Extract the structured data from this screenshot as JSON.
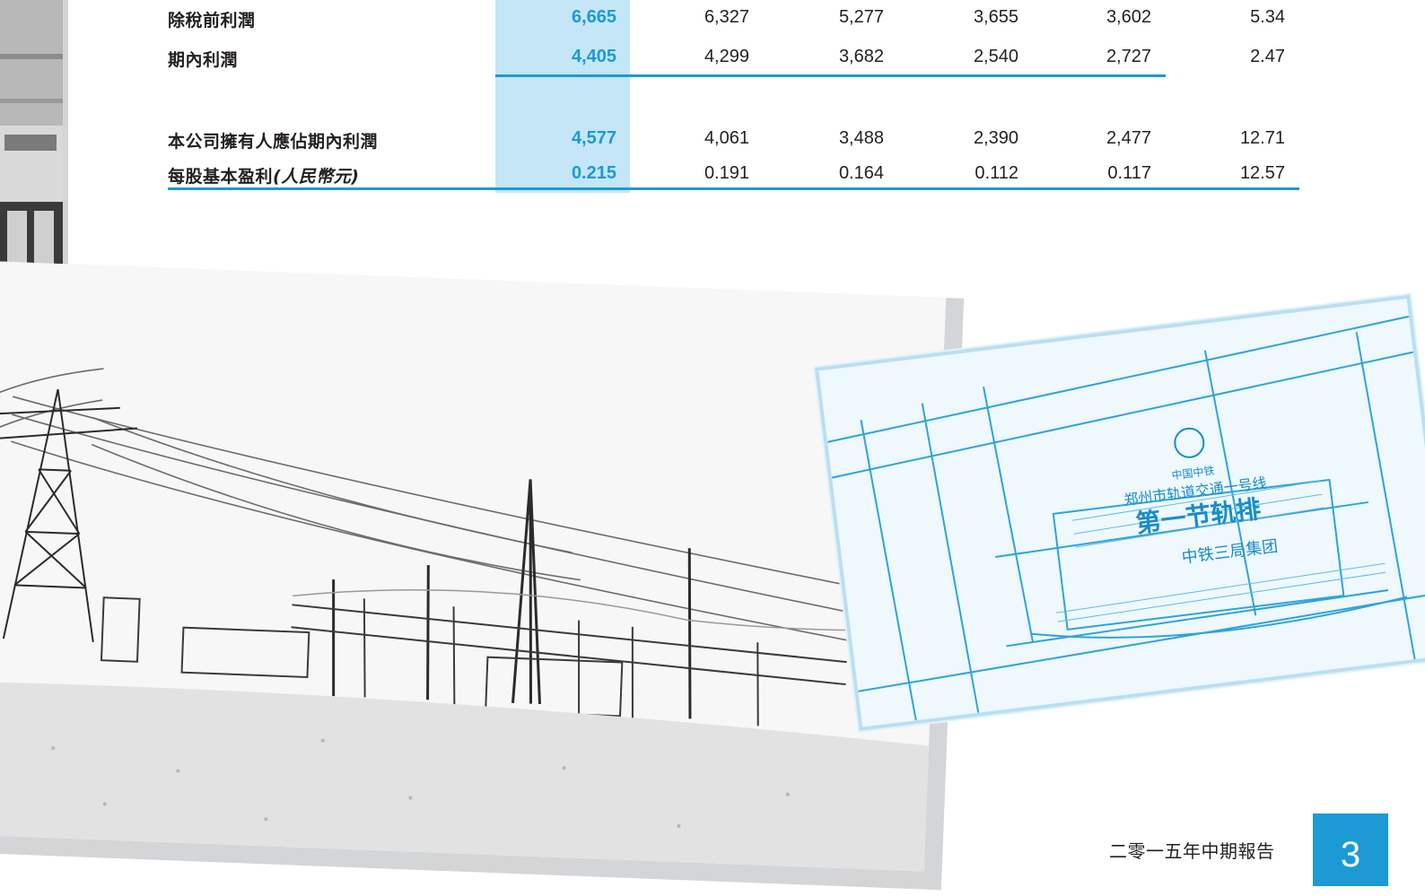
{
  "table": {
    "rows": [
      {
        "label": "除稅前利潤",
        "unit": "",
        "current": "6,665",
        "values": [
          "6,327",
          "5,277",
          "3,655",
          "3,602"
        ],
        "change": "5.34"
      },
      {
        "label": "期內利潤",
        "unit": "",
        "current": "4,405",
        "values": [
          "4,299",
          "3,682",
          "2,540",
          "2,727"
        ],
        "change": "2.47"
      },
      {
        "label": "本公司擁有人應佔期內利潤",
        "unit": "",
        "current": "4,577",
        "values": [
          "4,061",
          "3,488",
          "2,390",
          "2,477"
        ],
        "change": "12.71"
      },
      {
        "label": "每股基本盈利",
        "unit": "(人民幣元)",
        "current": "0.215",
        "values": [
          "0.191",
          "0.164",
          "0.112",
          "0.117"
        ],
        "change": "12.57"
      }
    ]
  },
  "photos": {
    "rail_sign_org": "中国中铁",
    "rail_sign_line": "郑州市轨道交通一号线",
    "rail_sign_title": "第一节轨排",
    "rail_sign_company": "中铁三局集团"
  },
  "footer": {
    "title": "二零一五年中期報告",
    "page_number": "3"
  },
  "colors": {
    "accent": "#1b9ad6",
    "highlight": "#c5e6f6",
    "text": "#231f20",
    "photo_border": "#d3d4d6"
  }
}
